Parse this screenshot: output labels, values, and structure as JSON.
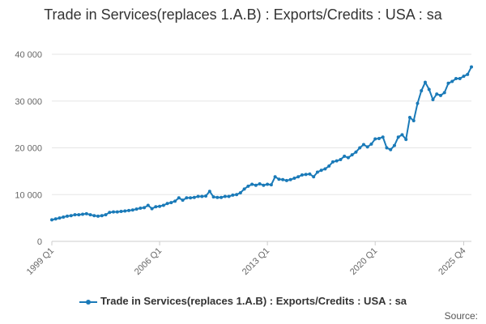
{
  "chart_data": {
    "type": "line",
    "title": "Trade in Services(replaces 1.A.B) : Exports/Credits : USA : sa",
    "xlabel": "",
    "ylabel": "",
    "ylim": [
      0,
      40000
    ],
    "yticks": [
      0,
      10000,
      20000,
      30000,
      40000
    ],
    "ytick_labels": [
      "0",
      "10 000",
      "20 000",
      "30 000",
      "40 000"
    ],
    "xtick_labels": [
      "1999 Q1",
      "2006 Q1",
      "2013 Q1",
      "2020 Q1",
      "2025 Q4"
    ],
    "grid": true,
    "legend_position": "bottom",
    "x_start": "1999 Q1",
    "x_end": "2025 Q4",
    "series": [
      {
        "name": "Trade in Services(replaces 1.A.B) : Exports/Credits : USA : sa",
        "color": "#1a7ab8",
        "values": [
          4600,
          4800,
          5000,
          5200,
          5400,
          5500,
          5700,
          5700,
          5800,
          5900,
          5700,
          5500,
          5400,
          5500,
          5700,
          6200,
          6300,
          6300,
          6400,
          6500,
          6600,
          6700,
          6900,
          7100,
          7200,
          7700,
          7000,
          7400,
          7500,
          7700,
          8100,
          8300,
          8600,
          9300,
          8800,
          9300,
          9300,
          9400,
          9600,
          9600,
          9700,
          10700,
          9500,
          9400,
          9400,
          9600,
          9600,
          9900,
          10000,
          10400,
          11200,
          11800,
          12200,
          12000,
          12300,
          12000,
          12200,
          12100,
          13800,
          13300,
          13200,
          13000,
          13200,
          13500,
          13800,
          14200,
          14300,
          14400,
          13800,
          14800,
          15200,
          15500,
          16100,
          17000,
          17200,
          17500,
          18200,
          17900,
          18500,
          19100,
          20000,
          20700,
          20200,
          20800,
          21900,
          22000,
          22300,
          20000,
          19600,
          20500,
          22300,
          22800,
          21800,
          26500,
          25800,
          29500,
          32200,
          34000,
          32500,
          30300,
          31500,
          31200,
          31800,
          33800,
          34200,
          34800,
          34800,
          35300,
          35700,
          37300
        ]
      }
    ]
  },
  "legend": {
    "label": "Trade in Services(replaces 1.A.B) : Exports/Credits : USA : sa"
  },
  "footer": {
    "source": "Source:"
  }
}
